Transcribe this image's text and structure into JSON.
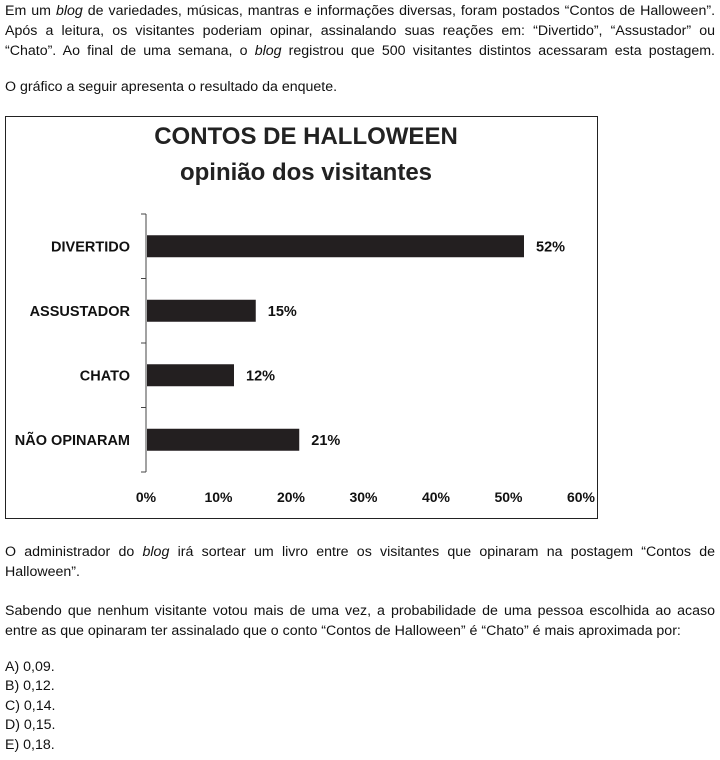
{
  "intro": {
    "line1_a": "Em um ",
    "line1_blog": "blog",
    "line1_b": " de variedades, músicas, mantras e informações diversas, foram postados “Contos de Halloween”. Após a leitura, os visitantes poderiam opinar, assinalando suas reações em: “Divertido”, “Assustador” ou “Chato”. Ao final de uma semana, o ",
    "line1_blog2": "blog",
    "line1_c": " registrou que 500 visitantes distintos acessaram esta postagem."
  },
  "chart_intro": "O gráfico a seguir apresenta o resultado da enquete.",
  "chart_data": {
    "type": "bar",
    "orientation": "horizontal",
    "title": "CONTOS DE HALLOWEEN",
    "subtitle": "opinião dos visitantes",
    "categories": [
      "DIVERTIDO",
      "ASSUSTADOR",
      "CHATO",
      "NÃO OPINARAM"
    ],
    "values": [
      52,
      15,
      12,
      21
    ],
    "value_labels": [
      "52%",
      "15%",
      "12%",
      "21%"
    ],
    "xlim": [
      0,
      60
    ],
    "ticks": [
      0,
      10,
      20,
      30,
      40,
      50,
      60
    ],
    "tick_labels": [
      "0%",
      "10%",
      "20%",
      "30%",
      "40%",
      "50%",
      "60%"
    ],
    "grid": false,
    "bar_color": "#231f20"
  },
  "para2": {
    "a": "O administrador do ",
    "blog": "blog",
    "b": " irá sortear um livro entre os visitantes que opinaram na postagem “Contos de Halloween”."
  },
  "para3": "Sabendo que nenhum visitante votou mais de uma vez, a probabilidade de uma pessoa escolhida ao acaso entre as que opinaram ter assinalado que o conto “Contos de Halloween” é “Chato” é mais aproximada por:",
  "options": [
    "A) 0,09.",
    "B) 0,12.",
    "C) 0,14.",
    "D) 0,15.",
    "E) 0,18."
  ]
}
